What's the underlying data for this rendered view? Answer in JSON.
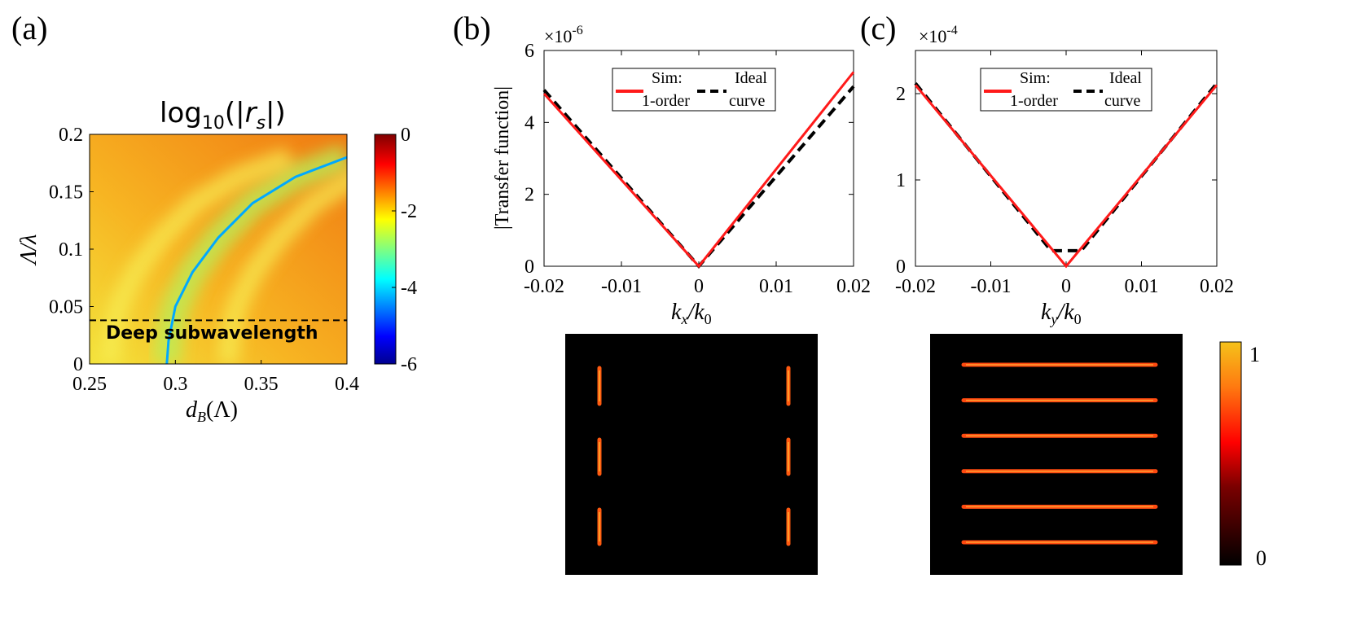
{
  "colors": {
    "sim_line": "#ff1a1a",
    "ideal_line": "#000000",
    "blue_curve": "#00a8ff",
    "dashed_marker": "#000000"
  },
  "chart_data": [
    {
      "panel": "(a)",
      "type": "heatmap",
      "title": "log10(|rs|)",
      "title_base": "log",
      "title_sub": "10",
      "title_arg_open": "(|",
      "title_arg": "r",
      "title_arg_sub": "s",
      "title_arg_close": "|)",
      "xlabel": "d",
      "xlabel_sub": "B",
      "xlabel_unit": "(Λ)",
      "ylabel": "Λ/λ",
      "xlim": [
        0.25,
        0.4
      ],
      "ylim": [
        0,
        0.2
      ],
      "xticks": [
        "0.25",
        "0.3",
        "0.35",
        "0.4"
      ],
      "yticks": [
        "0",
        "0.05",
        "0.1",
        "0.15",
        "0.2"
      ],
      "colorbar": {
        "range": [
          -6,
          0
        ],
        "ticks": [
          "0",
          "-2",
          "-4",
          "-6"
        ]
      },
      "zero_curve": {
        "x": [
          0.295,
          0.296,
          0.3,
          0.31,
          0.325,
          0.345,
          0.37,
          0.4
        ],
        "y": [
          0,
          0.02,
          0.05,
          0.08,
          0.11,
          0.14,
          0.163,
          0.18
        ]
      },
      "threshold_line": {
        "y": 0.038,
        "label": "Deep subwavelength"
      }
    },
    {
      "panel": "(b)",
      "type": "line",
      "xlabel": "k",
      "xlabel_sub": "x",
      "xlabel_den": "k",
      "xlabel_den_sub": "0",
      "ylabel": "|Transfer function|",
      "exponent_label": "×10",
      "exponent": "-6",
      "xlim": [
        -0.02,
        0.02
      ],
      "ylim": [
        0,
        6
      ],
      "xticks": [
        "-0.02",
        "-0.01",
        "0",
        "0.01",
        "0.02"
      ],
      "yticks": [
        "0",
        "2",
        "4",
        "6"
      ],
      "series": [
        {
          "name": "Sim: 1-order",
          "x": [
            -0.02,
            0,
            0.02
          ],
          "values": [
            4.8,
            0,
            5.4
          ]
        },
        {
          "name": "Ideal curve",
          "x": [
            -0.02,
            0,
            0.02
          ],
          "values": [
            4.9,
            0,
            5.0
          ]
        }
      ],
      "legend": {
        "position": "top",
        "entries": [
          [
            "Sim:",
            "1-order"
          ],
          [
            "Ideal",
            "curve"
          ]
        ]
      }
    },
    {
      "panel": "(c)",
      "type": "line",
      "xlabel": "k",
      "xlabel_sub": "y",
      "xlabel_den": "k",
      "xlabel_den_sub": "0",
      "exponent_label": "×10",
      "exponent": "-4",
      "xlim": [
        -0.02,
        0.02
      ],
      "ylim": [
        0,
        2.5
      ],
      "xticks": [
        "-0.02",
        "-0.01",
        "0",
        "0.01",
        "0.02"
      ],
      "yticks": [
        "0",
        "1",
        "2"
      ],
      "series": [
        {
          "name": "Sim: 1-order",
          "x": [
            -0.02,
            0,
            0.02
          ],
          "values": [
            2.1,
            0,
            2.1
          ]
        },
        {
          "name": "Ideal curve",
          "x": [
            -0.02,
            -0.002,
            0.002,
            0.02
          ],
          "values": [
            2.12,
            0.18,
            0.18,
            2.12
          ]
        }
      ],
      "legend": {
        "position": "top",
        "entries": [
          [
            "Sim:",
            "1-order"
          ],
          [
            "Ideal",
            "curve"
          ]
        ]
      }
    }
  ],
  "images": {
    "b_pattern": {
      "columns": 2,
      "segments_per_column": 3,
      "orientation": "vertical"
    },
    "c_pattern": {
      "rows": 6,
      "orientation": "horizontal"
    },
    "colorbar": {
      "range": [
        0,
        1
      ],
      "ticks": [
        "1",
        "0"
      ]
    }
  }
}
